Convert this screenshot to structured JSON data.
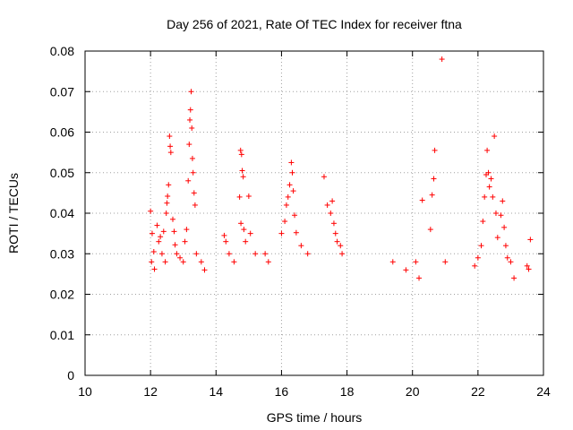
{
  "chart_data": {
    "type": "scatter",
    "title": "Day 256 of 2021, Rate Of TEC Index for receiver ftna",
    "xlabel": "GPS time / hours",
    "ylabel": "ROTI / TECUs",
    "xlim": [
      10,
      24
    ],
    "ylim": [
      0,
      0.08
    ],
    "x_ticks": [
      10,
      12,
      14,
      16,
      18,
      20,
      22,
      24
    ],
    "y_ticks": [
      0,
      0.01,
      0.02,
      0.03,
      0.04,
      0.05,
      0.06,
      0.07,
      0.08
    ],
    "x_tick_labels": [
      "10",
      "12",
      "14",
      "16",
      "18",
      "20",
      "22",
      "24"
    ],
    "y_tick_labels": [
      "0",
      "0.01",
      "0.02",
      "0.03",
      "0.04",
      "0.05",
      "0.06",
      "0.07",
      "0.08"
    ],
    "grid": true,
    "legend": false,
    "marker": "+",
    "point_color": "#ff0000",
    "series": [
      {
        "points": [
          [
            12.0,
            0.0405
          ],
          [
            12.03,
            0.028
          ],
          [
            12.05,
            0.035
          ],
          [
            12.1,
            0.0305
          ],
          [
            12.12,
            0.0262
          ],
          [
            12.2,
            0.037
          ],
          [
            12.25,
            0.033
          ],
          [
            12.3,
            0.0342
          ],
          [
            12.35,
            0.03
          ],
          [
            12.4,
            0.0355
          ],
          [
            12.45,
            0.028
          ],
          [
            12.48,
            0.04
          ],
          [
            12.5,
            0.0425
          ],
          [
            12.52,
            0.0442
          ],
          [
            12.55,
            0.047
          ],
          [
            12.58,
            0.059
          ],
          [
            12.6,
            0.0565
          ],
          [
            12.62,
            0.055
          ],
          [
            12.68,
            0.0385
          ],
          [
            12.72,
            0.0355
          ],
          [
            12.75,
            0.0322
          ],
          [
            12.8,
            0.03
          ],
          [
            12.9,
            0.029
          ],
          [
            13.0,
            0.028
          ],
          [
            13.05,
            0.033
          ],
          [
            13.1,
            0.036
          ],
          [
            13.15,
            0.048
          ],
          [
            13.18,
            0.057
          ],
          [
            13.2,
            0.063
          ],
          [
            13.22,
            0.0655
          ],
          [
            13.24,
            0.07
          ],
          [
            13.26,
            0.061
          ],
          [
            13.28,
            0.0535
          ],
          [
            13.3,
            0.05
          ],
          [
            13.33,
            0.045
          ],
          [
            13.36,
            0.042
          ],
          [
            13.4,
            0.03
          ],
          [
            13.55,
            0.028
          ],
          [
            13.65,
            0.026
          ],
          [
            14.25,
            0.0345
          ],
          [
            14.3,
            0.033
          ],
          [
            14.4,
            0.03
          ],
          [
            14.55,
            0.028
          ],
          [
            14.75,
            0.0555
          ],
          [
            14.78,
            0.0545
          ],
          [
            14.8,
            0.0505
          ],
          [
            14.83,
            0.049
          ],
          [
            14.72,
            0.044
          ],
          [
            14.76,
            0.0375
          ],
          [
            14.85,
            0.036
          ],
          [
            14.9,
            0.033
          ],
          [
            15.0,
            0.0442
          ],
          [
            15.05,
            0.035
          ],
          [
            15.2,
            0.03
          ],
          [
            15.5,
            0.03
          ],
          [
            15.6,
            0.028
          ],
          [
            16.0,
            0.035
          ],
          [
            16.1,
            0.038
          ],
          [
            16.15,
            0.042
          ],
          [
            16.2,
            0.044
          ],
          [
            16.25,
            0.047
          ],
          [
            16.3,
            0.0525
          ],
          [
            16.33,
            0.05
          ],
          [
            16.36,
            0.0455
          ],
          [
            16.4,
            0.0395
          ],
          [
            16.45,
            0.0352
          ],
          [
            16.6,
            0.032
          ],
          [
            16.8,
            0.03
          ],
          [
            17.3,
            0.049
          ],
          [
            17.4,
            0.042
          ],
          [
            17.5,
            0.04
          ],
          [
            17.55,
            0.043
          ],
          [
            17.6,
            0.0375
          ],
          [
            17.65,
            0.035
          ],
          [
            17.7,
            0.033
          ],
          [
            17.8,
            0.032
          ],
          [
            17.85,
            0.03
          ],
          [
            19.4,
            0.028
          ],
          [
            19.8,
            0.026
          ],
          [
            20.1,
            0.028
          ],
          [
            20.2,
            0.024
          ],
          [
            20.3,
            0.0432
          ],
          [
            20.55,
            0.036
          ],
          [
            20.6,
            0.0445
          ],
          [
            20.65,
            0.0485
          ],
          [
            20.68,
            0.0555
          ],
          [
            20.9,
            0.078
          ],
          [
            21.0,
            0.028
          ],
          [
            21.9,
            0.027
          ],
          [
            22.0,
            0.029
          ],
          [
            22.1,
            0.032
          ],
          [
            22.15,
            0.038
          ],
          [
            22.2,
            0.044
          ],
          [
            22.25,
            0.0495
          ],
          [
            22.28,
            0.0555
          ],
          [
            22.32,
            0.05
          ],
          [
            22.35,
            0.0465
          ],
          [
            22.4,
            0.0485
          ],
          [
            22.45,
            0.044
          ],
          [
            22.5,
            0.059
          ],
          [
            22.55,
            0.04
          ],
          [
            22.6,
            0.034
          ],
          [
            22.7,
            0.0395
          ],
          [
            22.75,
            0.043
          ],
          [
            22.8,
            0.0365
          ],
          [
            22.85,
            0.032
          ],
          [
            22.9,
            0.029
          ],
          [
            23.0,
            0.028
          ],
          [
            23.1,
            0.024
          ],
          [
            23.6,
            0.0335
          ],
          [
            23.5,
            0.027
          ],
          [
            23.55,
            0.0262
          ]
        ]
      }
    ]
  }
}
